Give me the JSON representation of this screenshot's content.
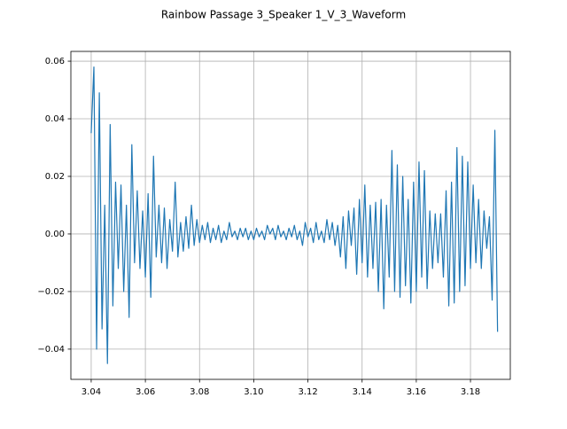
{
  "chart_data": {
    "type": "line",
    "title": "Rainbow Passage 3_Speaker 1_V_3_Waveform",
    "color": "#1f77b4",
    "grid": true,
    "xlim": [
      3.0325,
      3.1947
    ],
    "ylim": [
      -0.0505,
      0.0634
    ],
    "xticks": [
      3.04,
      3.06,
      3.08,
      {
        "value": 3.1,
        "label": "3.10"
      },
      3.12,
      3.14,
      3.16,
      3.18
    ],
    "yticks": [
      {
        "value": -0.04,
        "label": "−0.04"
      },
      {
        "value": -0.02,
        "label": "−0.02"
      },
      {
        "value": 0,
        "label": "0.00"
      },
      0.02,
      0.04,
      0.06
    ],
    "x": [
      3.04,
      3.041,
      3.042,
      3.043,
      3.044,
      3.045,
      3.046,
      3.047,
      3.048,
      3.049,
      3.05,
      3.051,
      3.052,
      3.053,
      3.054,
      3.055,
      3.056,
      3.057,
      3.058,
      3.059,
      3.06,
      3.061,
      3.062,
      3.063,
      3.064,
      3.065,
      3.066,
      3.067,
      3.068,
      3.069,
      3.07,
      3.071,
      3.072,
      3.073,
      3.074,
      3.075,
      3.076,
      3.077,
      3.078,
      3.079,
      3.08,
      3.081,
      3.082,
      3.083,
      3.084,
      3.085,
      3.086,
      3.087,
      3.088,
      3.089,
      3.09,
      3.091,
      3.092,
      3.093,
      3.094,
      3.095,
      3.096,
      3.097,
      3.098,
      3.099,
      3.1,
      3.101,
      3.102,
      3.103,
      3.104,
      3.105,
      3.106,
      3.107,
      3.108,
      3.109,
      3.11,
      3.111,
      3.112,
      3.113,
      3.114,
      3.115,
      3.116,
      3.117,
      3.118,
      3.119,
      3.12,
      3.121,
      3.122,
      3.123,
      3.124,
      3.125,
      3.126,
      3.127,
      3.128,
      3.129,
      3.13,
      3.131,
      3.132,
      3.133,
      3.134,
      3.135,
      3.136,
      3.137,
      3.138,
      3.139,
      3.14,
      3.141,
      3.142,
      3.143,
      3.144,
      3.145,
      3.146,
      3.147,
      3.148,
      3.149,
      3.15,
      3.151,
      3.152,
      3.153,
      3.154,
      3.155,
      3.156,
      3.157,
      3.158,
      3.159,
      3.16,
      3.161,
      3.162,
      3.163,
      3.164,
      3.165,
      3.166,
      3.167,
      3.168,
      3.169,
      3.17,
      3.171,
      3.172,
      3.173,
      3.174,
      3.175,
      3.176,
      3.177,
      3.178,
      3.179,
      3.18,
      3.181,
      3.182,
      3.183,
      3.184,
      3.185,
      3.186,
      3.187,
      3.188,
      3.189,
      3.19
    ],
    "values": [
      0.035,
      0.058,
      -0.04,
      0.049,
      -0.033,
      0.01,
      -0.045,
      0.038,
      -0.025,
      0.018,
      -0.012,
      0.017,
      -0.02,
      0.01,
      -0.029,
      0.031,
      -0.01,
      0.015,
      -0.012,
      0.008,
      -0.015,
      0.014,
      -0.022,
      0.027,
      -0.008,
      0.01,
      -0.01,
      0.009,
      -0.012,
      0.005,
      -0.006,
      0.018,
      -0.008,
      0.004,
      -0.006,
      0.006,
      -0.005,
      0.01,
      -0.004,
      0.005,
      -0.003,
      0.003,
      -0.002,
      0.004,
      -0.003,
      0.002,
      -0.002,
      0.003,
      -0.003,
      0.001,
      -0.002,
      0.004,
      -0.001,
      0.001,
      -0.002,
      0.002,
      -0.001,
      0.002,
      -0.002,
      0.001,
      -0.002,
      0.002,
      -0.001,
      0.001,
      -0.002,
      0.003,
      0.0,
      0.002,
      -0.002,
      0.003,
      -0.001,
      0.001,
      -0.002,
      0.002,
      -0.001,
      0.003,
      -0.002,
      0.001,
      -0.004,
      0.004,
      -0.001,
      0.002,
      -0.003,
      0.004,
      -0.002,
      0.001,
      -0.003,
      0.005,
      -0.002,
      0.004,
      -0.004,
      0.003,
      -0.008,
      0.006,
      -0.012,
      0.008,
      -0.004,
      0.009,
      -0.014,
      0.012,
      -0.01,
      0.017,
      -0.015,
      0.01,
      -0.012,
      0.011,
      -0.02,
      0.012,
      -0.026,
      0.01,
      -0.015,
      0.029,
      -0.02,
      0.024,
      -0.022,
      0.02,
      -0.018,
      0.012,
      -0.024,
      0.018,
      -0.02,
      0.025,
      -0.015,
      0.022,
      -0.019,
      0.008,
      -0.012,
      0.007,
      -0.01,
      0.007,
      -0.015,
      0.015,
      -0.025,
      0.018,
      -0.024,
      0.03,
      -0.02,
      0.027,
      -0.018,
      0.025,
      -0.012,
      0.017,
      -0.01,
      0.012,
      -0.012,
      0.008,
      -0.005,
      0.006,
      -0.023,
      0.036,
      -0.034
    ]
  }
}
